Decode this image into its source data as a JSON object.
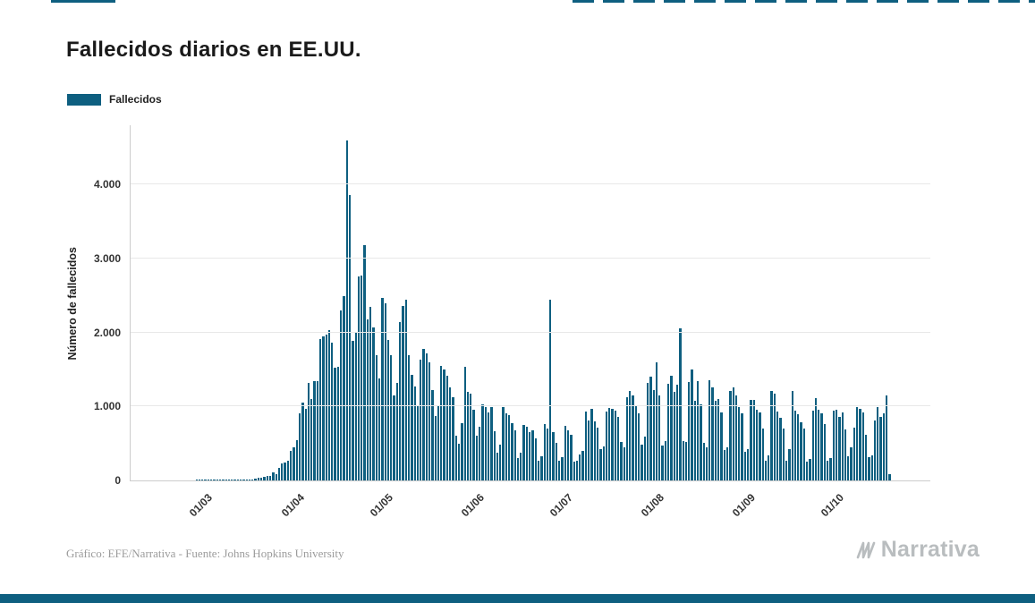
{
  "header": {
    "title": "Fallecidos diarios en EE.UU."
  },
  "legend": {
    "label": "Fallecidos"
  },
  "chart_data": {
    "type": "bar",
    "title": "Fallecidos diarios en EE.UU.",
    "series_name": "Fallecidos",
    "xlabel": "",
    "ylabel": "Número de fallecidos",
    "y_max": 4800,
    "grid": true,
    "legend_position": "top-left",
    "y_ticks": [
      {
        "value": 0,
        "label": "0"
      },
      {
        "value": 1000,
        "label": "1.000"
      },
      {
        "value": 2000,
        "label": "2.000"
      },
      {
        "value": 3000,
        "label": "3.000"
      },
      {
        "value": 4000,
        "label": "4.000"
      }
    ],
    "x_ticks": [
      {
        "index": 26,
        "label": "01/03"
      },
      {
        "index": 57,
        "label": "01/04"
      },
      {
        "index": 87,
        "label": "01/05"
      },
      {
        "index": 118,
        "label": "01/06"
      },
      {
        "index": 148,
        "label": "01/07"
      },
      {
        "index": 179,
        "label": "01/08"
      },
      {
        "index": 210,
        "label": "01/09"
      },
      {
        "index": 240,
        "label": "01/10"
      }
    ],
    "values": [
      0,
      0,
      0,
      0,
      0,
      0,
      0,
      0,
      0,
      0,
      0,
      0,
      0,
      0,
      0,
      0,
      0,
      0,
      0,
      0,
      0,
      0,
      1,
      1,
      2,
      3,
      1,
      2,
      2,
      3,
      2,
      3,
      4,
      3,
      5,
      6,
      4,
      7,
      9,
      11,
      13,
      18,
      23,
      32,
      41,
      49,
      57,
      66,
      111,
      80,
      164,
      225,
      247,
      268,
      400,
      453,
      540,
      912,
      1049,
      968,
      1321,
      1104,
      1344,
      1342,
      1906,
      1943,
      1973,
      2035,
      1857,
      1528,
      1535,
      2299,
      2494,
      4591,
      3857,
      1891,
      1997,
      2751,
      2763,
      3179,
      2172,
      2341,
      2065,
      1687,
      1384,
      2470,
      2390,
      1897,
      1691,
      1154,
      1324,
      2144,
      2353,
      2437,
      1687,
      1422,
      1274,
      1008,
      1630,
      1772,
      1715,
      1595,
      1218,
      865,
      1003,
      1552,
      1500,
      1418,
      1260,
      1129,
      605,
      500,
      774,
      1535,
      1199,
      1175,
      960,
      605,
      730,
      1031,
      995,
      921,
      994,
      671,
      373,
      487,
      987,
      905,
      888,
      772,
      683,
      302,
      374,
      752,
      722,
      652,
      679,
      565,
      267,
      327,
      761,
      700,
      2437,
      648,
      512,
      271,
      319,
      741,
      682,
      613,
      252,
      265,
      351,
      397,
      935,
      812,
      964,
      802,
      715,
      420,
      458,
      935,
      976,
      969,
      943,
      853,
      516,
      453,
      1126,
      1205,
      1150,
      1019,
      908,
      483,
      593,
      1319,
      1403,
      1227,
      1595,
      1148,
      471,
      532,
      1302,
      1410,
      1203,
      1290,
      2061,
      531,
      515,
      1326,
      1504,
      1076,
      1337,
      1023,
      507,
      446,
      1352,
      1263,
      1079,
      1104,
      925,
      407,
      445,
      1205,
      1253,
      1143,
      987,
      905,
      389,
      427,
      1083,
      1089,
      961,
      919,
      707,
      267,
      344,
      1208,
      1179,
      935,
      850,
      700,
      267,
      420,
      1204,
      939,
      890,
      784,
      704,
      257,
      289,
      939,
      1109,
      950,
      906,
      760,
      266,
      302,
      940,
      958,
      855,
      920,
      684,
      324,
      445,
      712,
      989,
      970,
      917,
      619,
      309,
      340,
      808,
      987,
      860,
      913,
      1149,
      83,
      0,
      0,
      0,
      0,
      0,
      0,
      0,
      0,
      0,
      0,
      0,
      0,
      0
    ]
  },
  "footer": {
    "credit": "Gráfico: EFE/Narrativa - Fuente: Johns Hopkins University",
    "brand": "Narrativa"
  },
  "colors": {
    "bar": "#0e5f80",
    "accent": "#0e5f80",
    "title_text": "#1a1a1a",
    "axis_text": "#333333",
    "grid": "#e8e8e8",
    "axis_line": "#cccccc",
    "footer_text": "#9b9b9b",
    "brand_text": "#b9bdbf"
  }
}
